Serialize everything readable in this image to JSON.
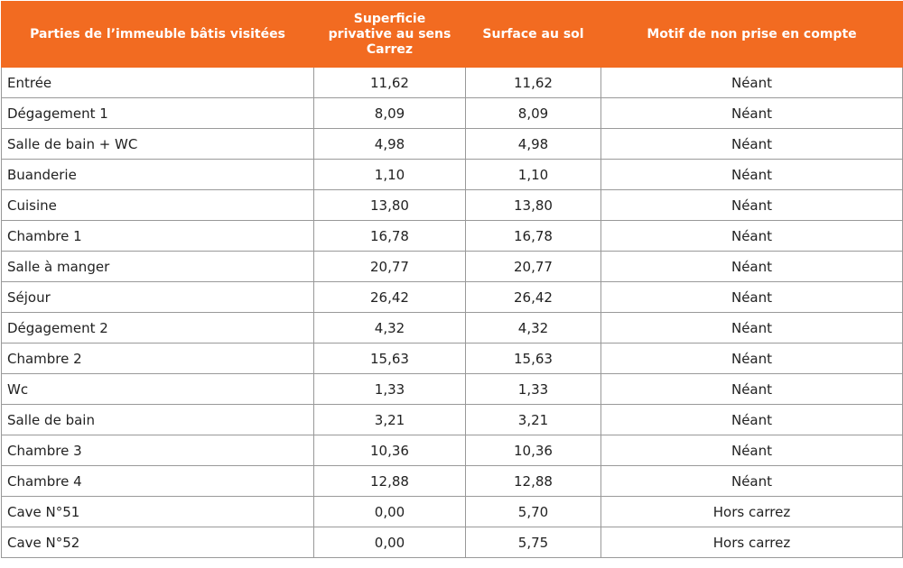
{
  "table": {
    "header": [
      "Parties de l’immeuble bâtis visitées",
      "Superficie privative au sens Carrez",
      "Surface au sol",
      "Motif de non prise en compte"
    ],
    "rows": [
      [
        "Entrée",
        "11,62",
        "11,62",
        "Néant"
      ],
      [
        "Dégagement 1",
        "8,09",
        "8,09",
        "Néant"
      ],
      [
        "Salle de bain + WC",
        "4,98",
        "4,98",
        "Néant"
      ],
      [
        "Buanderie",
        "1,10",
        "1,10",
        "Néant"
      ],
      [
        "Cuisine",
        "13,80",
        "13,80",
        "Néant"
      ],
      [
        "Chambre 1",
        "16,78",
        "16,78",
        "Néant"
      ],
      [
        "Salle à manger",
        "20,77",
        "20,77",
        "Néant"
      ],
      [
        "Séjour",
        "26,42",
        "26,42",
        "Néant"
      ],
      [
        "Dégagement 2",
        "4,32",
        "4,32",
        "Néant"
      ],
      [
        "Chambre 2",
        "15,63",
        "15,63",
        "Néant"
      ],
      [
        "Wc",
        "1,33",
        "1,33",
        "Néant"
      ],
      [
        "Salle de bain",
        "3,21",
        "3,21",
        "Néant"
      ],
      [
        "Chambre 3",
        "10,36",
        "10,36",
        "Néant"
      ],
      [
        "Chambre 4",
        "12,88",
        "12,88",
        "Néant"
      ],
      [
        "Cave N°51",
        "0,00",
        "5,70",
        "Hors carrez"
      ],
      [
        "Cave N°52",
        "0,00",
        "5,75",
        "Hors carrez"
      ]
    ]
  }
}
